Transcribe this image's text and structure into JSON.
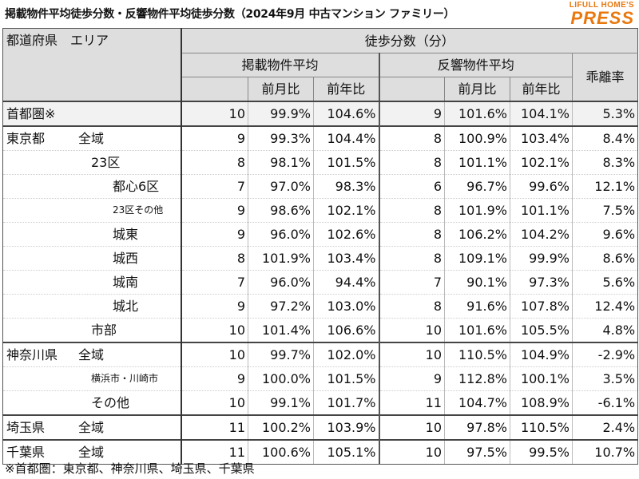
{
  "title": "掲載物件平均徒歩分数・反響物件平均徒歩分数（2024年9月 中古マンション ファミリー）",
  "logo": {
    "top": "LIFULL HOME'S",
    "main": "PRESS"
  },
  "header": {
    "pref_area": "都道府県　エリア",
    "walk_minutes": "徒歩分数（分）",
    "listing_avg": "掲載物件平均",
    "response_avg": "反響物件平均",
    "divergence": "乖離率",
    "mom": "前月比",
    "yoy": "前年比"
  },
  "rows": [
    {
      "pref": "首都圏※",
      "area": "",
      "l_min": "10",
      "l_mom": "99.9%",
      "l_yoy": "104.6%",
      "r_min": "9",
      "r_mom": "101.6%",
      "r_yoy": "104.1%",
      "div": "5.3%"
    },
    {
      "pref": "東京都",
      "area": "全域",
      "l_min": "9",
      "l_mom": "99.3%",
      "l_yoy": "104.4%",
      "r_min": "8",
      "r_mom": "100.9%",
      "r_yoy": "103.4%",
      "div": "8.4%"
    },
    {
      "pref": "",
      "area": "23区",
      "l_min": "8",
      "l_mom": "98.1%",
      "l_yoy": "101.5%",
      "r_min": "8",
      "r_mom": "101.1%",
      "r_yoy": "102.1%",
      "div": "8.3%"
    },
    {
      "pref": "",
      "area": "都心6区",
      "l_min": "7",
      "l_mom": "97.0%",
      "l_yoy": "98.3%",
      "r_min": "6",
      "r_mom": "96.7%",
      "r_yoy": "99.6%",
      "div": "12.1%"
    },
    {
      "pref": "",
      "area": "23区その他",
      "l_min": "9",
      "l_mom": "98.6%",
      "l_yoy": "102.1%",
      "r_min": "8",
      "r_mom": "101.9%",
      "r_yoy": "101.1%",
      "div": "7.5%"
    },
    {
      "pref": "",
      "area": "城東",
      "l_min": "9",
      "l_mom": "96.0%",
      "l_yoy": "102.6%",
      "r_min": "8",
      "r_mom": "106.2%",
      "r_yoy": "104.2%",
      "div": "9.6%"
    },
    {
      "pref": "",
      "area": "城西",
      "l_min": "8",
      "l_mom": "101.9%",
      "l_yoy": "103.4%",
      "r_min": "8",
      "r_mom": "109.1%",
      "r_yoy": "99.9%",
      "div": "8.6%"
    },
    {
      "pref": "",
      "area": "城南",
      "l_min": "7",
      "l_mom": "96.0%",
      "l_yoy": "94.4%",
      "r_min": "7",
      "r_mom": "90.1%",
      "r_yoy": "97.3%",
      "div": "5.6%"
    },
    {
      "pref": "",
      "area": "城北",
      "l_min": "9",
      "l_mom": "97.2%",
      "l_yoy": "103.0%",
      "r_min": "8",
      "r_mom": "91.6%",
      "r_yoy": "107.8%",
      "div": "12.4%"
    },
    {
      "pref": "",
      "area": "市部",
      "l_min": "10",
      "l_mom": "101.4%",
      "l_yoy": "106.6%",
      "r_min": "10",
      "r_mom": "101.6%",
      "r_yoy": "105.5%",
      "div": "4.8%"
    },
    {
      "pref": "神奈川県",
      "area": "全域",
      "l_min": "10",
      "l_mom": "99.7%",
      "l_yoy": "102.0%",
      "r_min": "10",
      "r_mom": "110.5%",
      "r_yoy": "104.9%",
      "div": "-2.9%"
    },
    {
      "pref": "",
      "area": "横浜市・川崎市",
      "l_min": "9",
      "l_mom": "100.0%",
      "l_yoy": "101.5%",
      "r_min": "9",
      "r_mom": "112.8%",
      "r_yoy": "100.1%",
      "div": "3.5%"
    },
    {
      "pref": "",
      "area": "その他",
      "l_min": "10",
      "l_mom": "99.1%",
      "l_yoy": "101.7%",
      "r_min": "11",
      "r_mom": "104.7%",
      "r_yoy": "108.9%",
      "div": "-6.1%"
    },
    {
      "pref": "埼玉県",
      "area": "全域",
      "l_min": "11",
      "l_mom": "100.2%",
      "l_yoy": "103.9%",
      "r_min": "10",
      "r_mom": "97.8%",
      "r_yoy": "110.5%",
      "div": "2.4%"
    },
    {
      "pref": "千葉県",
      "area": "全域",
      "l_min": "11",
      "l_mom": "100.6%",
      "l_yoy": "105.1%",
      "r_min": "10",
      "r_mom": "97.5%",
      "r_yoy": "99.5%",
      "div": "10.7%"
    }
  ],
  "footnote": "※首都圏：東京都、神奈川県、埼玉県、千葉県"
}
